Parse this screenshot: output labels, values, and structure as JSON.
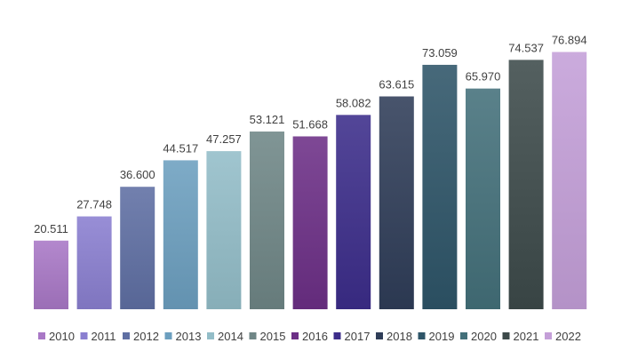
{
  "chart_data": {
    "type": "bar",
    "categories": [
      "2010",
      "2011",
      "2012",
      "2013",
      "2014",
      "2015",
      "2016",
      "2017",
      "2018",
      "2019",
      "2020",
      "2021",
      "2022"
    ],
    "values": [
      20.511,
      27.748,
      36.6,
      44.517,
      47.257,
      53.121,
      51.668,
      58.082,
      63.615,
      73.059,
      65.97,
      74.537,
      76.894
    ],
    "value_labels": [
      "20.511",
      "27.748",
      "36.600",
      "44.517",
      "47.257",
      "53.121",
      "51.668",
      "58.082",
      "63.615",
      "73.059",
      "65.970",
      "74.537",
      "76.894"
    ],
    "colors": [
      "#a978c6",
      "#8a7fd0",
      "#5f6fa3",
      "#6c9fbf",
      "#93bdc8",
      "#6f8686",
      "#6c2f86",
      "#3c2d8a",
      "#2f3d58",
      "#2e5568",
      "#43707a",
      "#3d4a4a",
      "#c49fd8"
    ],
    "title": "",
    "xlabel": "",
    "ylabel": "",
    "ylim": [
      0,
      85
    ],
    "grid": false,
    "legend_position": "bottom"
  }
}
